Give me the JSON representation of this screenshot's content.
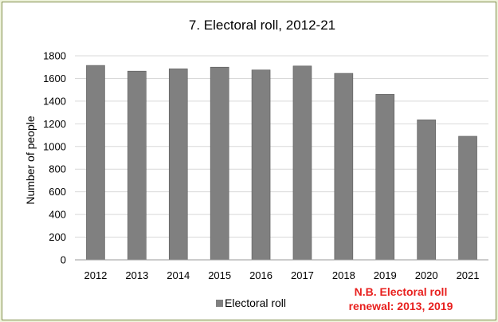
{
  "chart_data": {
    "type": "bar",
    "title": "7. Electoral roll, 2012-21",
    "xlabel": "",
    "ylabel": "Number of people",
    "ylim": [
      0,
      1800
    ],
    "yticks": [
      "0",
      "200",
      "400",
      "600",
      "800",
      "1000",
      "1200",
      "1400",
      "1600",
      "1800"
    ],
    "categories": [
      "2012",
      "2013",
      "2014",
      "2015",
      "2016",
      "2017",
      "2018",
      "2019",
      "2020",
      "2021"
    ],
    "series": [
      {
        "name": "Electoral roll",
        "color": "#808080",
        "values": [
          1715,
          1665,
          1685,
          1700,
          1675,
          1710,
          1645,
          1460,
          1235,
          1090
        ]
      }
    ],
    "grid": true,
    "legend": "bottom",
    "annotation": {
      "line1": "N.B. Electoral roll",
      "line2": "renewal: 2013, 2019",
      "color": "#e8201e"
    }
  }
}
